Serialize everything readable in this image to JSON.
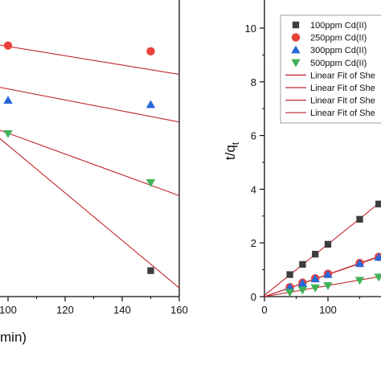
{
  "colors": {
    "series_100": "#3d3d3d",
    "series_250": "#e8413c",
    "series_300": "#2767d8",
    "series_500": "#41b257",
    "fit_line": "#c0282d",
    "axis": "#111111"
  },
  "chart_data": [
    {
      "type": "scatter",
      "panel": "left",
      "xlabel": "min)",
      "ylabel": "",
      "xlim": [
        92,
        160
      ],
      "ylim": [
        0,
        1
      ],
      "x_ticks": [
        "100",
        "120",
        "140",
        "160"
      ],
      "y_ticks": [],
      "series": [
        {
          "key": "series_250",
          "marker": "circle",
          "points": [
            [
              100,
              0.87
            ],
            [
              150,
              0.85
            ]
          ],
          "fit": [
            [
              92,
              0.88
            ],
            [
              160,
              0.77
            ]
          ]
        },
        {
          "key": "series_300",
          "marker": "triangle-up",
          "points": [
            [
              100,
              0.68
            ],
            [
              150,
              0.665
            ]
          ],
          "fit": [
            [
              92,
              0.735
            ],
            [
              160,
              0.605
            ]
          ]
        },
        {
          "key": "series_500",
          "marker": "triangle-down",
          "points": [
            [
              100,
              0.565
            ],
            [
              150,
              0.395
            ]
          ],
          "fit": [
            [
              92,
              0.595
            ],
            [
              160,
              0.35
            ]
          ]
        },
        {
          "key": "series_100",
          "marker": "square",
          "points": [
            [
              150,
              0.09
            ]
          ],
          "fit": [
            [
              92,
              0.59
            ],
            [
              160,
              0.03
            ]
          ]
        }
      ]
    },
    {
      "type": "scatter",
      "panel": "right",
      "xlabel": "",
      "ylabel": "t/q",
      "ylabel_sub": "t",
      "xlim": [
        0,
        200
      ],
      "ylim": [
        0,
        11
      ],
      "x_ticks": [
        "0",
        "100"
      ],
      "x_tick_values": [
        0,
        100
      ],
      "y_ticks": [
        "0",
        "2",
        "4",
        "6",
        "8",
        "10"
      ],
      "y_tick_values": [
        0,
        2,
        4,
        6,
        8,
        10
      ],
      "legend": {
        "position": "top-right",
        "entries": [
          {
            "label": "100ppm Cd(II)",
            "marker": "square",
            "key": "series_100"
          },
          {
            "label": "250ppm Cd(II)",
            "marker": "circle",
            "key": "series_250"
          },
          {
            "label": "300ppm Cd(II)",
            "marker": "triangle-up",
            "key": "series_300"
          },
          {
            "label": "500ppm Cd(II)",
            "marker": "triangle-down",
            "key": "series_500"
          },
          {
            "label": "Linear Fit of She",
            "marker": "line",
            "key": "fit_line"
          },
          {
            "label": "Linear Fit of She",
            "marker": "line",
            "key": "fit_line"
          },
          {
            "label": "Linear Fit of She",
            "marker": "line",
            "key": "fit_line"
          },
          {
            "label": "Linear Fit of She",
            "marker": "line",
            "key": "fit_line"
          }
        ]
      },
      "series": [
        {
          "key": "series_100",
          "marker": "square",
          "x": [
            40,
            60,
            80,
            100,
            150,
            180
          ],
          "y": [
            0.82,
            1.2,
            1.58,
            1.95,
            2.88,
            3.45
          ],
          "fit": [
            [
              0,
              0.05
            ],
            [
              200,
              3.85
            ]
          ]
        },
        {
          "key": "series_250",
          "marker": "circle",
          "x": [
            40,
            60,
            80,
            100,
            150,
            180
          ],
          "y": [
            0.35,
            0.52,
            0.68,
            0.85,
            1.25,
            1.48
          ],
          "fit": [
            [
              0,
              0.0
            ],
            [
              200,
              1.66
            ]
          ]
        },
        {
          "key": "series_300",
          "marker": "triangle-up",
          "x": [
            40,
            60,
            80,
            100,
            150,
            180
          ],
          "y": [
            0.34,
            0.5,
            0.66,
            0.82,
            1.23,
            1.46
          ],
          "fit": [
            [
              0,
              0.0
            ],
            [
              200,
              1.64
            ]
          ]
        },
        {
          "key": "series_500",
          "marker": "triangle-down",
          "x": [
            40,
            60,
            80,
            100,
            150,
            180
          ],
          "y": [
            0.16,
            0.25,
            0.33,
            0.41,
            0.61,
            0.73
          ],
          "fit": [
            [
              0,
              0.0
            ],
            [
              200,
              0.82
            ]
          ]
        }
      ]
    }
  ]
}
